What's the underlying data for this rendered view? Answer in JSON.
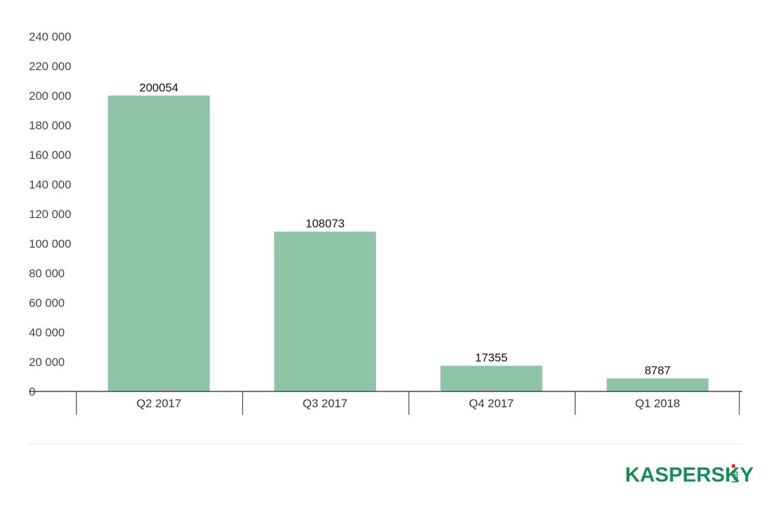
{
  "chart_data": {
    "type": "bar",
    "categories": [
      "Q2 2017",
      "Q3 2017",
      "Q4 2017",
      "Q1 2018"
    ],
    "values": [
      200054,
      108073,
      17355,
      8787
    ],
    "data_labels": [
      "200054",
      "108073",
      "17355",
      "8787"
    ],
    "title": "",
    "xlabel": "",
    "ylabel": "",
    "ylim": [
      0,
      240000
    ],
    "y_ticks": [
      {
        "value": 0,
        "label": "0"
      },
      {
        "value": 20000,
        "label": "20 000"
      },
      {
        "value": 40000,
        "label": "40 000"
      },
      {
        "value": 60000,
        "label": "60 000"
      },
      {
        "value": 80000,
        "label": "80 000"
      },
      {
        "value": 100000,
        "label": "100 000"
      },
      {
        "value": 120000,
        "label": "120 000"
      },
      {
        "value": 140000,
        "label": "140 000"
      },
      {
        "value": 160000,
        "label": "160 000"
      },
      {
        "value": 180000,
        "label": "180 000"
      },
      {
        "value": 200000,
        "label": "200 000"
      },
      {
        "value": 220000,
        "label": "220 000"
      },
      {
        "value": 240000,
        "label": "240 000"
      }
    ],
    "grid": false,
    "legend": "none",
    "bar_color": "#8fc3a8"
  },
  "branding": {
    "logo_text": "KASPERSKY",
    "logo_suffix": "lab",
    "logo_color": "#1b8a5a",
    "logo_accent": "#e8262d"
  }
}
